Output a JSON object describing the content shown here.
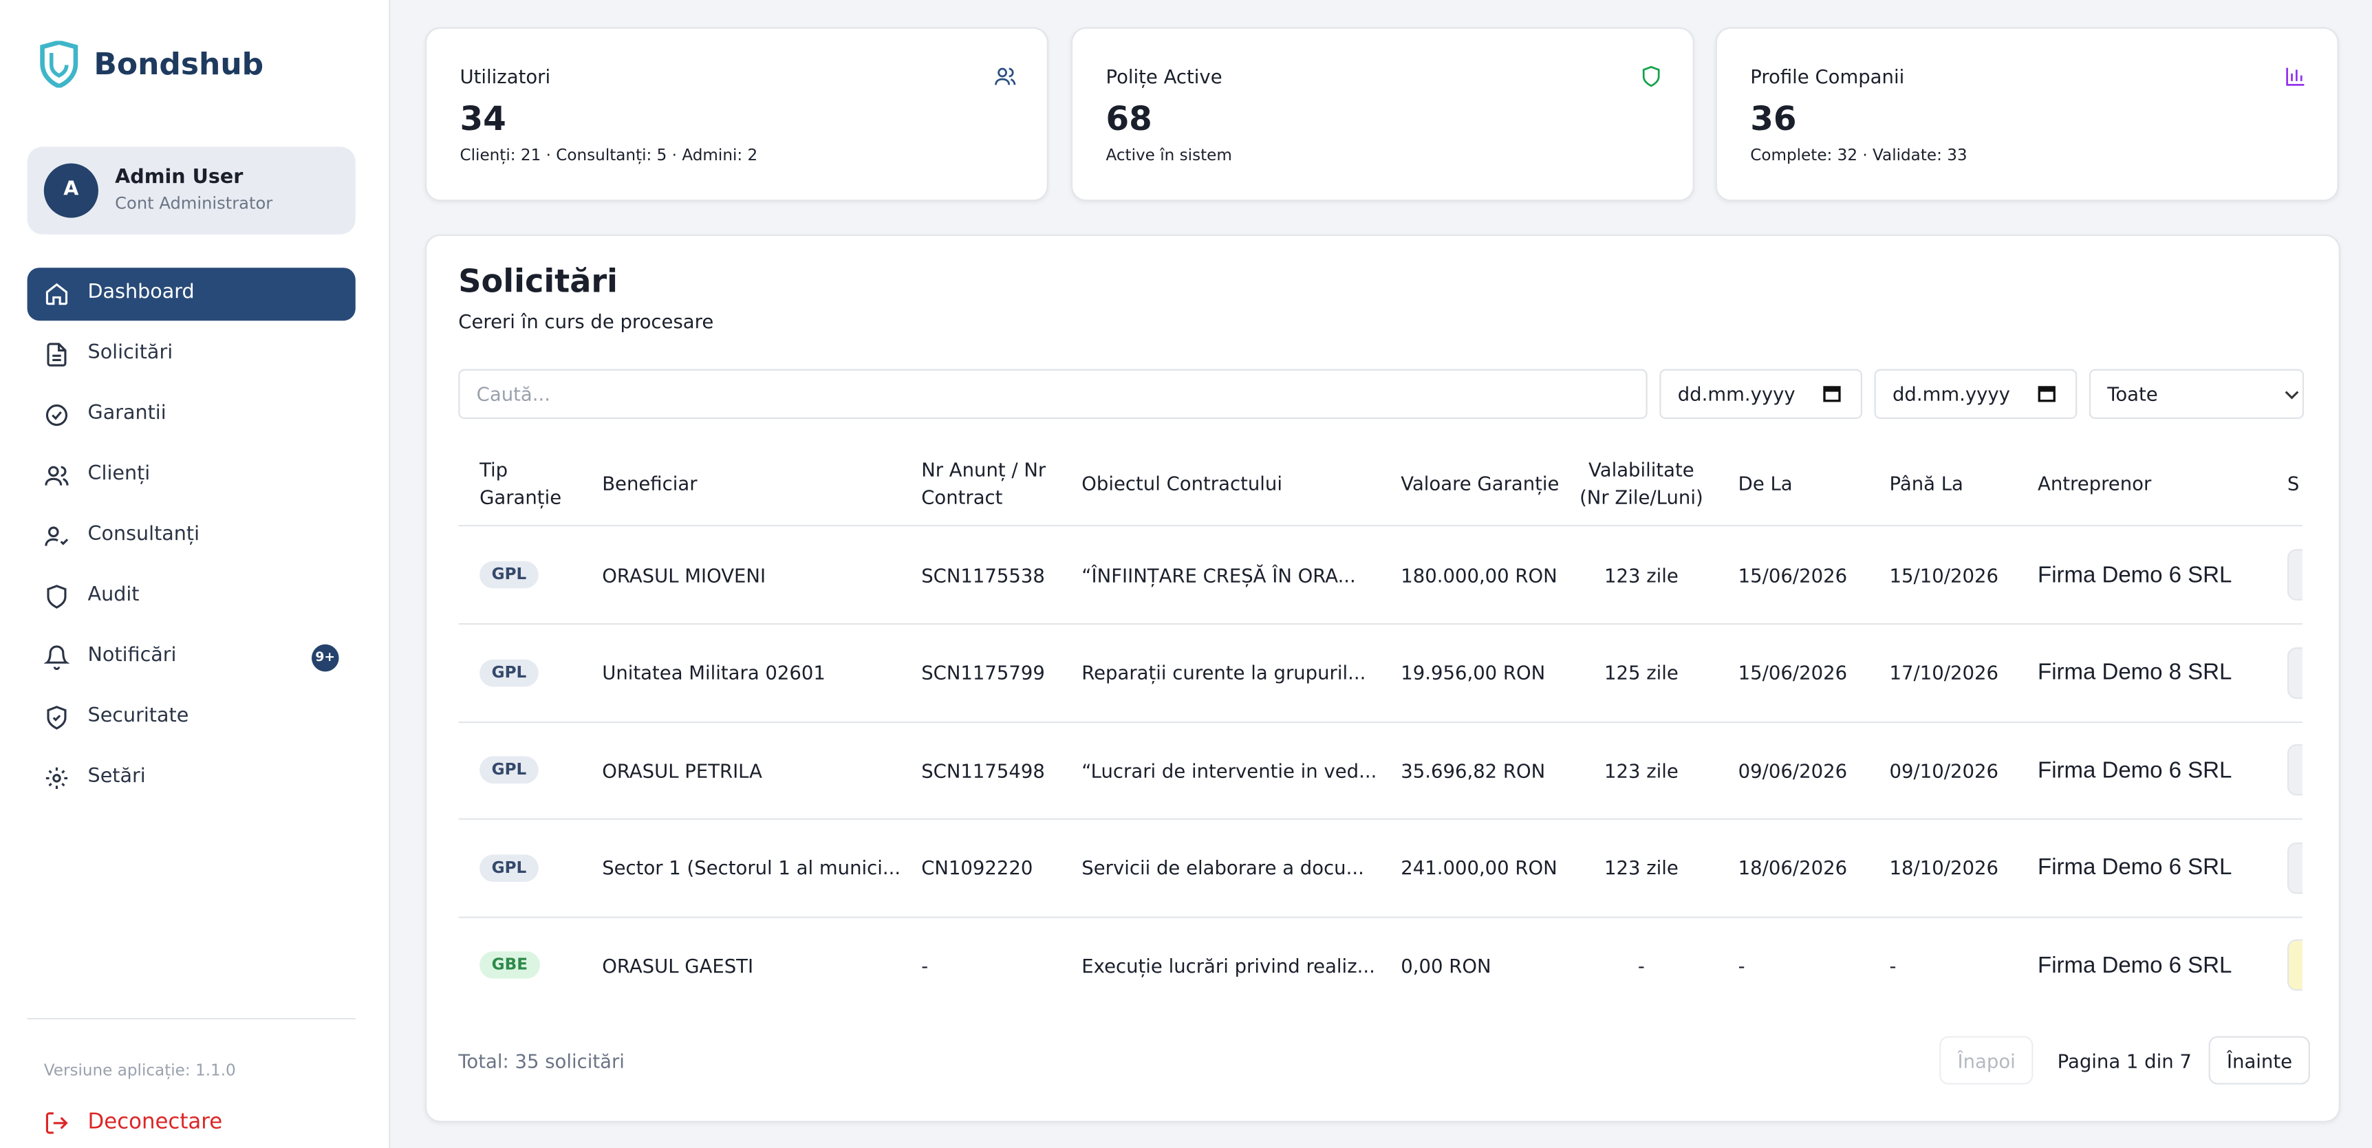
{
  "brand": "Bondshub",
  "user": {
    "initial": "A",
    "name": "Admin User",
    "role": "Cont Administrator"
  },
  "nav": [
    {
      "label": "Dashboard"
    },
    {
      "label": "Solicitări"
    },
    {
      "label": "Garantii"
    },
    {
      "label": "Clienți"
    },
    {
      "label": "Consultanți"
    },
    {
      "label": "Audit"
    },
    {
      "label": "Notificări",
      "badge": "9+"
    },
    {
      "label": "Securitate"
    },
    {
      "label": "Setări"
    }
  ],
  "sidebar_footer": {
    "version": "Versiune aplicație: 1.1.0",
    "logout": "Deconectare"
  },
  "stats": [
    {
      "title": "Utilizatori",
      "value": 34,
      "note": "Clienți: 21 · Consultanți: 5 · Admini: 2"
    },
    {
      "title": "Polițe Active",
      "value": 68,
      "note": "Active în sistem"
    },
    {
      "title": "Profile Companii",
      "value": 36,
      "note": "Complete: 32 · Validate: 33"
    }
  ],
  "panel": {
    "title": "Solicitări",
    "subtitle": "Cereri în curs de procesare",
    "search_placeholder": "Caută...",
    "date_from": "dd.mm.yyyy",
    "date_to": "dd.mm.yyyy",
    "filter": "Toate"
  },
  "table": {
    "headers": [
      "Tip Garanție",
      "Beneficiar",
      "Nr Anunț / Nr Contract",
      "Obiectul Contractului",
      "Valoare Garanție",
      "Valabilitate (Nr Zile/Luni)",
      "De La",
      "Până La",
      "Antreprenor",
      "S"
    ],
    "rows": [
      {
        "cells": [
          "GPL",
          "ORASUL MIOVENI",
          "SCN1175538",
          "“ÎNFIINȚARE CREȘĂ ÎN ORA...",
          "180.000,00 RON",
          "123 zile",
          "15/06/2026",
          "15/10/2026",
          "Firma Demo 6 SRL"
        ],
        "tip_bg": "#e6eaf1",
        "tip_fg": "#34496b",
        "status_color": "#eef0f4"
      },
      {
        "cells": [
          "GPL",
          "Unitatea Militara 02601",
          "SCN1175799",
          "Reparații curente la grupuril...",
          "19.956,00 RON",
          "125 zile",
          "15/06/2026",
          "17/10/2026",
          "Firma Demo 8 SRL"
        ],
        "tip_bg": "#e6eaf1",
        "tip_fg": "#34496b",
        "status_color": "#eef0f4"
      },
      {
        "cells": [
          "GPL",
          "ORASUL PETRILA",
          "SCN1175498",
          "“Lucrari de interventie in ved...",
          "35.696,82 RON",
          "123 zile",
          "09/06/2026",
          "09/10/2026",
          "Firma Demo 6 SRL"
        ],
        "tip_bg": "#e6eaf1",
        "tip_fg": "#34496b",
        "status_color": "#eef0f4"
      },
      {
        "cells": [
          "GPL",
          "Sector 1 (Sectorul 1 al munici...",
          "CN1092220",
          "Servicii de elaborare a docu...",
          "241.000,00 RON",
          "123 zile",
          "18/06/2026",
          "18/10/2026",
          "Firma Demo 6 SRL"
        ],
        "tip_bg": "#e6eaf1",
        "tip_fg": "#34496b",
        "status_color": "#eef0f4"
      },
      {
        "cells": [
          "GBE",
          "ORASUL GAESTI",
          "-",
          "Execuție lucrări privind realiz...",
          "0,00 RON",
          "-",
          "-",
          "-",
          "Firma Demo 6 SRL"
        ],
        "tip_bg": "#dcf5e3",
        "tip_fg": "#2f8a4a",
        "status_color": "#fbf6c8"
      }
    ]
  },
  "pagination": {
    "total": "Total: 35 solicitări",
    "prev": "Înapoi",
    "page": "Pagina 1 din 7",
    "next": "Înainte"
  }
}
